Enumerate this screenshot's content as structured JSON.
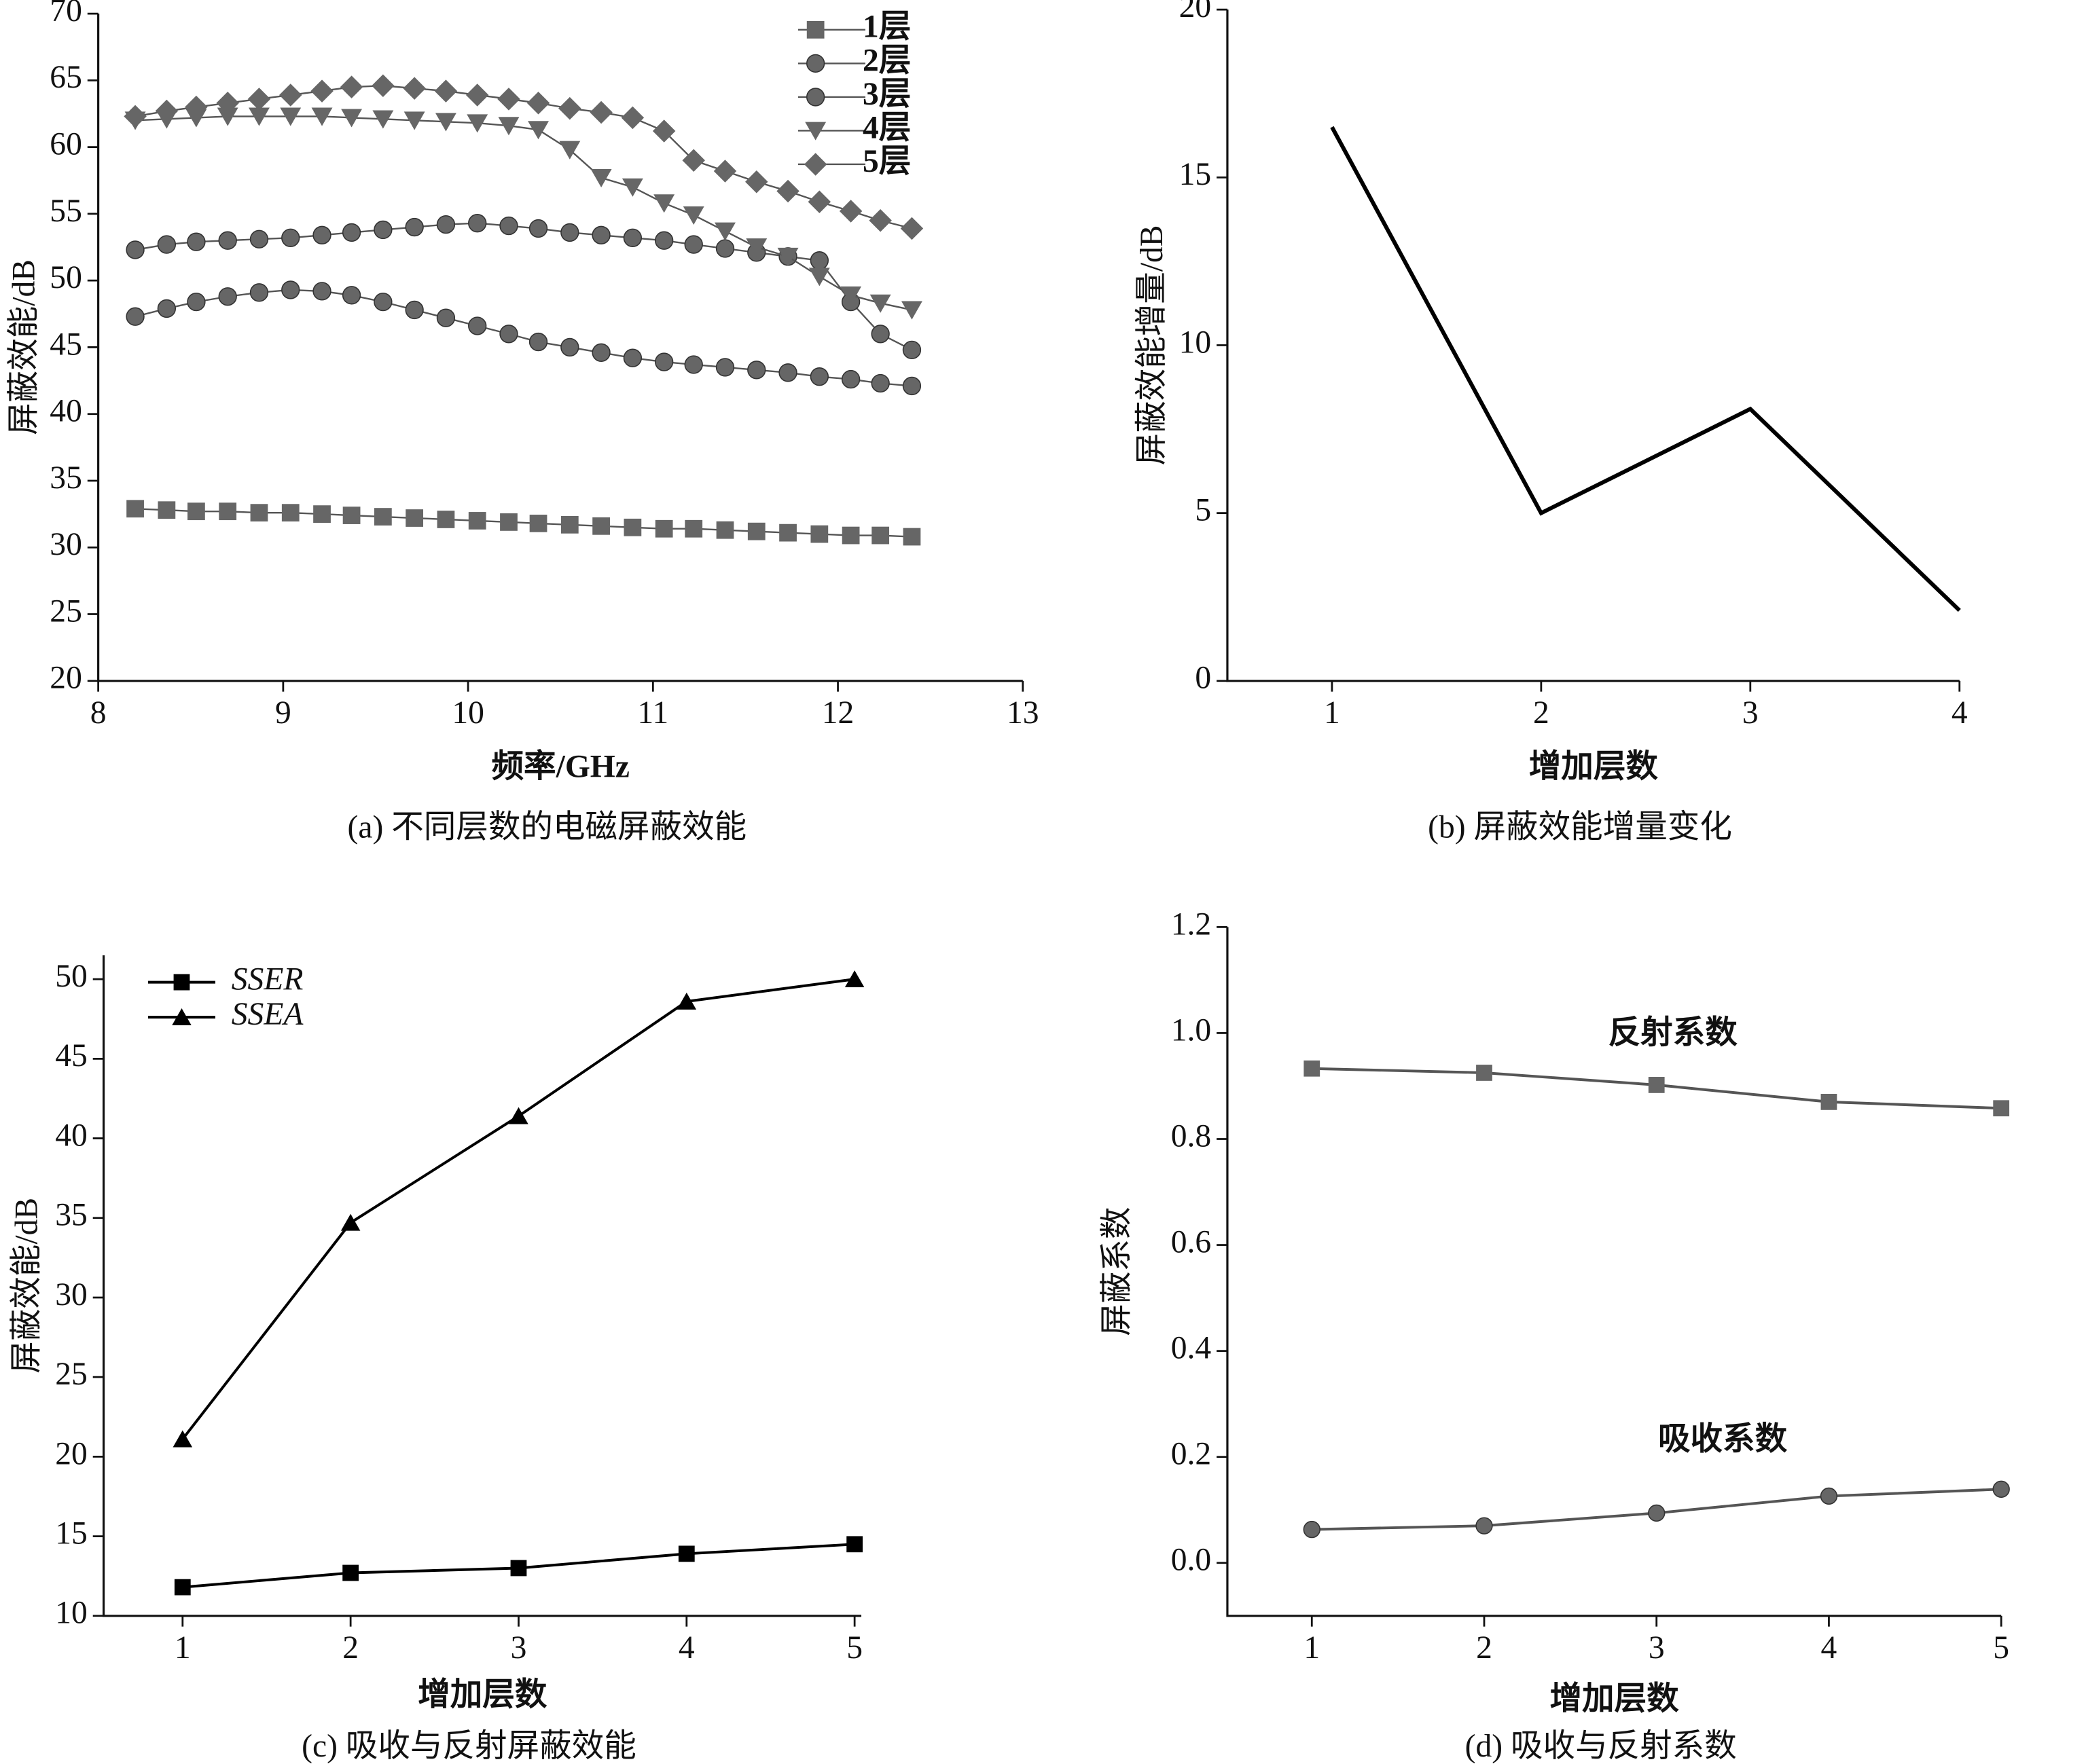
{
  "chart_data": [
    {
      "type": "line",
      "caption": "(a) 不同层数的电磁屏蔽效能",
      "xlabel": "频率/GHz",
      "ylabel": "屏蔽效能/dB",
      "x": [
        8.2,
        8.37,
        8.53,
        8.7,
        8.87,
        9.04,
        9.21,
        9.37,
        9.54,
        9.71,
        9.88,
        10.05,
        10.22,
        10.38,
        10.55,
        10.72,
        10.89,
        11.06,
        11.22,
        11.39,
        11.56,
        11.73,
        11.9,
        12.07,
        12.23,
        12.4
      ],
      "xlim": [
        8,
        13
      ],
      "xticks": [
        8,
        9,
        10,
        11,
        12,
        13
      ],
      "ylim": [
        20,
        70
      ],
      "yticks": [
        20,
        25,
        30,
        35,
        40,
        45,
        50,
        55,
        60,
        65,
        70
      ],
      "legend": "upper right",
      "series": [
        {
          "name": "1层",
          "color": "#555555",
          "marker": "square",
          "values": [
            32.9,
            32.8,
            32.7,
            32.7,
            32.6,
            32.6,
            32.5,
            32.4,
            32.3,
            32.2,
            32.1,
            32.0,
            31.9,
            31.8,
            31.7,
            31.6,
            31.5,
            31.4,
            31.4,
            31.3,
            31.2,
            31.1,
            31.0,
            30.9,
            30.9,
            30.8
          ]
        },
        {
          "name": "2层",
          "color": "#555555",
          "marker": "circle",
          "values": [
            47.3,
            47.9,
            48.4,
            48.8,
            49.1,
            49.3,
            49.2,
            48.9,
            48.4,
            47.8,
            47.2,
            46.6,
            46.0,
            45.4,
            45.0,
            44.6,
            44.2,
            43.9,
            43.7,
            43.5,
            43.3,
            43.1,
            42.8,
            42.6,
            42.3,
            42.1
          ]
        },
        {
          "name": "3层",
          "color": "#555555",
          "marker": "circle",
          "values": [
            52.3,
            52.7,
            52.9,
            53.0,
            53.1,
            53.2,
            53.4,
            53.6,
            53.8,
            54.0,
            54.2,
            54.3,
            54.1,
            53.9,
            53.6,
            53.4,
            53.2,
            53.0,
            52.7,
            52.4,
            52.1,
            51.8,
            51.5,
            48.4,
            46.0,
            44.8
          ]
        },
        {
          "name": "4层",
          "color": "#555555",
          "marker": "triangle-down",
          "values": [
            62.0,
            62.1,
            62.2,
            62.3,
            62.3,
            62.3,
            62.3,
            62.2,
            62.1,
            62.0,
            61.9,
            61.8,
            61.6,
            61.3,
            59.8,
            57.7,
            57.0,
            55.8,
            54.9,
            53.7,
            52.5,
            51.8,
            50.3,
            48.9,
            48.3,
            47.8
          ]
        },
        {
          "name": "5层",
          "color": "#555555",
          "marker": "diamond",
          "values": [
            62.3,
            62.7,
            63.0,
            63.3,
            63.6,
            63.9,
            64.2,
            64.5,
            64.6,
            64.4,
            64.2,
            63.9,
            63.6,
            63.3,
            62.9,
            62.6,
            62.2,
            61.2,
            59.0,
            58.2,
            57.4,
            56.7,
            55.9,
            55.2,
            54.5,
            53.9
          ]
        }
      ]
    },
    {
      "type": "line",
      "caption": "(b) 屏蔽效能增量变化",
      "xlabel": "增加层数",
      "ylabel": "屏蔽效能增量/dB",
      "x": [
        1,
        2,
        3,
        4
      ],
      "xlim": [
        0.5,
        4
      ],
      "xticks": [
        1,
        2,
        3,
        4
      ],
      "ylim": [
        0,
        20
      ],
      "yticks": [
        0,
        5,
        10,
        15,
        20
      ],
      "series": [
        {
          "color": "#000000",
          "values": [
            16.5,
            5.0,
            8.1,
            2.1
          ]
        }
      ]
    },
    {
      "type": "line",
      "caption": "(c) 吸收与反射屏蔽效能",
      "xlabel": "增加层数",
      "ylabel": "屏蔽效能/dB",
      "x": [
        1,
        2,
        3,
        4,
        5
      ],
      "xlim": [
        0.53,
        5.04
      ],
      "xticks": [
        1,
        2,
        3,
        4,
        5
      ],
      "ylim": [
        10,
        51.5
      ],
      "yticks": [
        10,
        15,
        20,
        25,
        30,
        35,
        40,
        45,
        50
      ],
      "legend": "upper left",
      "series": [
        {
          "name": "SSER",
          "color": "#000000",
          "marker": "square",
          "values": [
            11.8,
            12.7,
            13.0,
            13.9,
            14.5
          ]
        },
        {
          "name": "SSEA",
          "color": "#000000",
          "marker": "triangle",
          "values": [
            21.1,
            34.7,
            41.4,
            48.6,
            50.0
          ]
        }
      ]
    },
    {
      "type": "line",
      "caption": "(d) 吸收与反射系数",
      "xlabel": "增加层数",
      "ylabel": "屏蔽系数",
      "x": [
        1,
        2,
        3,
        4,
        5
      ],
      "xlim": [
        0.51,
        5
      ],
      "xticks": [
        1,
        2,
        3,
        4,
        5
      ],
      "ylim": [
        -0.1,
        1.2
      ],
      "yticks": [
        {
          "value": 0,
          "label": "0.0"
        },
        0.2,
        0.4,
        0.6,
        0.8,
        {
          "value": 1,
          "label": "1.0"
        },
        1.2
      ],
      "series": [
        {
          "name": "反射系数",
          "color": "#555555",
          "marker": "square",
          "values": [
            0.933,
            0.925,
            0.902,
            0.87,
            0.858
          ]
        },
        {
          "name": "吸收系数",
          "color": "#555555",
          "marker": "circle",
          "values": [
            0.063,
            0.07,
            0.094,
            0.126,
            0.139
          ]
        }
      ]
    }
  ]
}
